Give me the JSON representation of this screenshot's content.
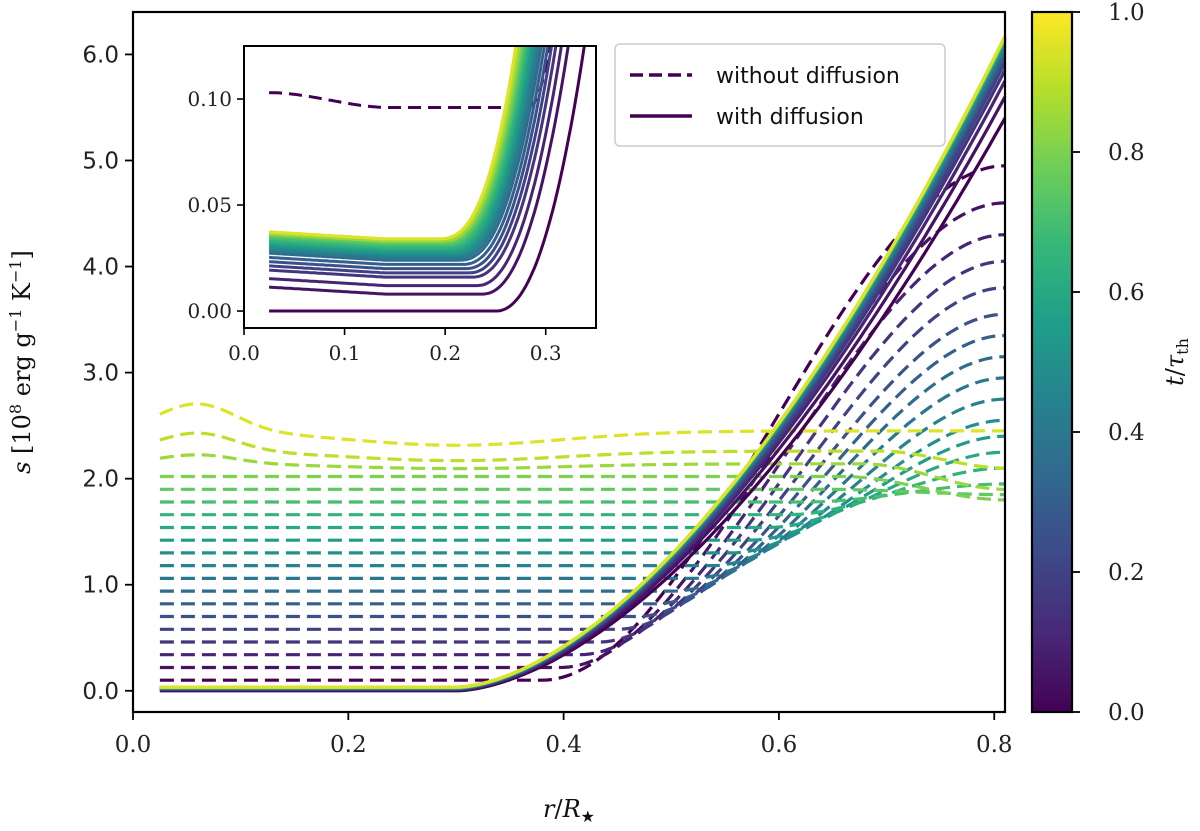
{
  "chart_data": {
    "type": "line",
    "title": "",
    "xlabel": "r/R_star",
    "ylabel": "s [10^8 erg g^-1 K^-1]",
    "xlim": [
      0.0,
      0.81
    ],
    "ylim": [
      -0.2,
      6.4
    ],
    "xticks": [
      0.0,
      0.2,
      0.4,
      0.6,
      0.8
    ],
    "yticks": [
      0.0,
      1.0,
      2.0,
      3.0,
      4.0,
      5.0,
      6.0
    ],
    "xtick_labels": [
      "0.0",
      "0.2",
      "0.4",
      "0.6",
      "0.8"
    ],
    "ytick_labels": [
      "0.0",
      "1.0",
      "2.0",
      "3.0",
      "4.0",
      "5.0",
      "6.0"
    ],
    "colorbar": {
      "label": "t/τth",
      "range": [
        0.0,
        1.0
      ],
      "ticks": [
        "0.0",
        "0.2",
        "0.4",
        "0.6",
        "0.8",
        "1.0"
      ],
      "colormap": "viridis",
      "colors": [
        "#440154",
        "#482878",
        "#3e4989",
        "#31688e",
        "#26828e",
        "#1f9e89",
        "#35b779",
        "#6ece58",
        "#b5de2b",
        "#fde725"
      ]
    },
    "legend": {
      "position": "upper-center",
      "entries": [
        {
          "label": "without diffusion",
          "style": "dashed",
          "color": "#440154"
        },
        {
          "label": "with diffusion",
          "style": "solid",
          "color": "#440154"
        }
      ]
    },
    "series_summary": {
      "count_per_family": 20,
      "time_fractions": [
        0.0,
        0.05,
        0.1,
        0.15,
        0.2,
        0.25,
        0.3,
        0.35,
        0.4,
        0.45,
        0.5,
        0.55,
        0.6,
        0.65,
        0.7,
        0.75,
        0.8,
        0.85,
        0.9,
        0.95
      ],
      "without_diffusion_core_entropy": [
        0.1,
        0.22,
        0.34,
        0.46,
        0.58,
        0.7,
        0.82,
        0.94,
        1.06,
        1.18,
        1.3,
        1.42,
        1.54,
        1.66,
        1.78,
        1.9,
        2.02,
        2.14,
        2.26,
        2.45
      ],
      "without_diffusion_surface_entropy": [
        4.95,
        4.6,
        4.3,
        4.05,
        3.8,
        3.55,
        3.35,
        3.15,
        2.95,
        2.75,
        2.55,
        2.4,
        2.25,
        2.1,
        1.95,
        1.85,
        1.8,
        1.9,
        2.1,
        2.45
      ],
      "with_diffusion_core_entropy": [
        0.0,
        0.008,
        0.012,
        0.016,
        0.018,
        0.02,
        0.022,
        0.024,
        0.025,
        0.026,
        0.027,
        0.028,
        0.029,
        0.03,
        0.031,
        0.032,
        0.033,
        0.033,
        0.034,
        0.034
      ],
      "with_diffusion_surface_entropy": [
        5.4,
        5.6,
        5.75,
        5.85,
        5.92,
        5.98,
        6.02,
        6.05,
        6.08,
        6.1,
        6.12,
        6.13,
        6.14,
        6.15,
        6.16,
        6.16,
        6.17,
        6.17,
        6.17,
        6.17
      ],
      "x_points": [
        0.025,
        0.05,
        0.1,
        0.15,
        0.2,
        0.25,
        0.3,
        0.35,
        0.4,
        0.45,
        0.5,
        0.55,
        0.6,
        0.65,
        0.7,
        0.75,
        0.8,
        0.81
      ]
    },
    "inset": {
      "xlim": [
        0.0,
        0.35
      ],
      "ylim": [
        -0.008,
        0.125
      ],
      "xtick_labels": [
        "0.0",
        "0.1",
        "0.2",
        "0.3"
      ],
      "ytick_labels": [
        "0.00",
        "0.05",
        "0.10"
      ],
      "xticks": [
        0.0,
        0.1,
        0.2,
        0.3
      ],
      "yticks": [
        0.0,
        0.05,
        0.1
      ]
    }
  }
}
